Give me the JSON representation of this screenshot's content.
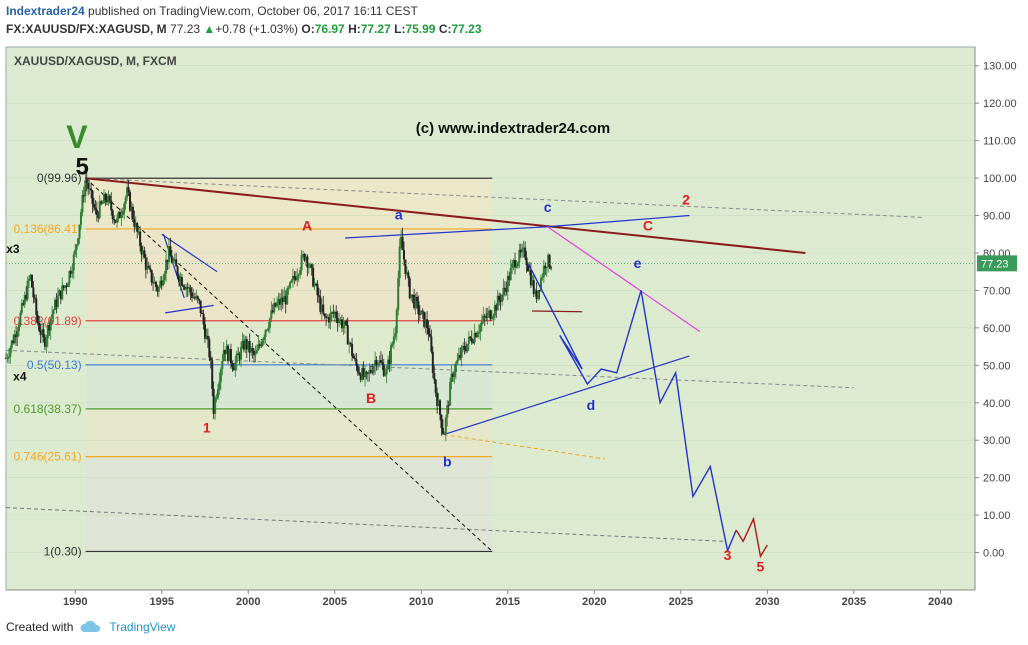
{
  "header": {
    "publisher": "Indextrader24",
    "published_text": "published on TradingView.com, October 06, 2017 16:11 CEST",
    "symbol": "FX:XAUUSD/FX:XAGUSD, M",
    "last": "77.23",
    "change": "+0.78 (+1.03%)",
    "open_label": "O:",
    "open": "76.97",
    "high_label": "H:",
    "high": "77.27",
    "low_label": "L:",
    "low": "75.99",
    "close_label": "C:",
    "close": "77.23"
  },
  "footer": {
    "created_with": "Created with",
    "brand": "TradingView"
  },
  "colors": {
    "up": "#2e7d32",
    "down": "#222222",
    "wave_blue": "#2233cc",
    "wave_red": "#e02020",
    "trend": "#8b1a1a",
    "magenta": "#e040e0",
    "bg": "#dcebd0"
  },
  "chart_data": {
    "type": "candlestick",
    "title": "XAUUSD/XAGUSD, M, FXCM",
    "watermark": "(c) www.indextrader24.com",
    "x_ticks": [
      "1990",
      "1995",
      "2000",
      "2005",
      "2010",
      "2015",
      "2020",
      "2025",
      "2030",
      "2035",
      "2040"
    ],
    "y_ticks": [
      "130.00",
      "120.00",
      "110.00",
      "100.00",
      "90.00",
      "80.00",
      "70.00",
      "60.00",
      "50.00",
      "40.00",
      "30.00",
      "20.00",
      "10.00",
      "0.00"
    ],
    "ylim": [
      -10,
      135
    ],
    "xlim": [
      1986.0,
      2042.0
    ],
    "last_price": "77.23",
    "price_path": [
      [
        1986.0,
        52
      ],
      [
        1986.5,
        58
      ],
      [
        1987.0,
        66
      ],
      [
        1987.4,
        74
      ],
      [
        1987.8,
        62
      ],
      [
        1988.2,
        56
      ],
      [
        1988.6,
        63
      ],
      [
        1989.0,
        68
      ],
      [
        1989.5,
        72
      ],
      [
        1990.0,
        80
      ],
      [
        1990.6,
        99.96
      ],
      [
        1991.2,
        90
      ],
      [
        1991.8,
        95
      ],
      [
        1992.4,
        88
      ],
      [
        1993.0,
        96
      ],
      [
        1993.6,
        85
      ],
      [
        1994.2,
        75
      ],
      [
        1994.8,
        70
      ],
      [
        1995.4,
        80
      ],
      [
        1996.0,
        74
      ],
      [
        1996.6,
        70
      ],
      [
        1997.2,
        66
      ],
      [
        1997.8,
        52
      ],
      [
        1998.0,
        38.37
      ],
      [
        1998.6,
        55
      ],
      [
        1999.2,
        50
      ],
      [
        1999.8,
        56
      ],
      [
        2000.4,
        52
      ],
      [
        2001.0,
        60
      ],
      [
        2001.6,
        66
      ],
      [
        2002.2,
        68
      ],
      [
        2002.8,
        75
      ],
      [
        2003.3,
        80
      ],
      [
        2003.8,
        72
      ],
      [
        2004.4,
        62
      ],
      [
        2005.0,
        64
      ],
      [
        2005.6,
        60
      ],
      [
        2006.2,
        50
      ],
      [
        2006.8,
        46
      ],
      [
        2007.4,
        52
      ],
      [
        2008.0,
        48
      ],
      [
        2008.5,
        60
      ],
      [
        2008.8,
        84
      ],
      [
        2009.3,
        70
      ],
      [
        2009.9,
        64
      ],
      [
        2010.4,
        60
      ],
      [
        2010.8,
        44
      ],
      [
        2011.3,
        31.5
      ],
      [
        2011.8,
        48
      ],
      [
        2012.4,
        54
      ],
      [
        2013.0,
        58
      ],
      [
        2013.6,
        62
      ],
      [
        2014.2,
        65
      ],
      [
        2014.8,
        70
      ],
      [
        2015.4,
        78
      ],
      [
        2016.0,
        80
      ],
      [
        2016.6,
        68
      ],
      [
        2017.2,
        78
      ],
      [
        2017.5,
        77.23
      ]
    ],
    "fib_levels": [
      {
        "label": "0(99.96)",
        "value": 99.96,
        "color": "#333333"
      },
      {
        "label": "0.136(86.41)",
        "value": 86.41,
        "color": "#f5a623"
      },
      {
        "label": "0.382(61.89)",
        "value": 61.89,
        "color": "#e0443c"
      },
      {
        "label": "0.5(50.13)",
        "value": 50.13,
        "color": "#3a7bd5"
      },
      {
        "label": "0.618(38.37)",
        "value": 38.37,
        "color": "#4e9a2e"
      },
      {
        "label": "0.746(25.61)",
        "value": 25.61,
        "color": "#f5a623"
      },
      {
        "label": "1(0.30)",
        "value": 0.3,
        "color": "#333333"
      }
    ],
    "fib_x_range": [
      1990.6,
      2014.1
    ],
    "projection_blue": [
      [
        2016.2,
        77
      ],
      [
        2019.3,
        49
      ],
      [
        2018.0,
        58
      ],
      [
        2019.6,
        45
      ],
      [
        2020.4,
        49
      ],
      [
        2021.3,
        48
      ],
      [
        2022.7,
        70
      ],
      [
        2023.8,
        40
      ],
      [
        2024.7,
        48
      ],
      [
        2025.7,
        15
      ],
      [
        2026.7,
        23
      ],
      [
        2027.7,
        0.5
      ],
      [
        2028.2,
        6
      ]
    ],
    "projection_red": [
      [
        2028.2,
        6
      ],
      [
        2028.6,
        3
      ],
      [
        2029.2,
        9
      ],
      [
        2029.6,
        -1
      ],
      [
        2030.0,
        2
      ]
    ],
    "wave_labels": [
      {
        "text": "V",
        "x": 1990.1,
        "y": 108,
        "color": "#3a8a2e",
        "size": 32
      },
      {
        "text": "5",
        "x": 1990.4,
        "y": 101,
        "color": "#111111",
        "size": 24
      },
      {
        "text": "x3",
        "x": 1986.4,
        "y": 80,
        "color": "#111111",
        "size": 12
      },
      {
        "text": "x4",
        "x": 1986.8,
        "y": 46,
        "color": "#111111",
        "size": 12
      },
      {
        "text": "1",
        "x": 1997.6,
        "y": 32,
        "color": "#e02020",
        "size": 14
      },
      {
        "text": "A",
        "x": 2003.4,
        "y": 86,
        "color": "#e02020",
        "size": 14
      },
      {
        "text": "B",
        "x": 2007.1,
        "y": 40,
        "color": "#e02020",
        "size": 14
      },
      {
        "text": "a",
        "x": 2008.7,
        "y": 89,
        "color": "#2233cc",
        "size": 14
      },
      {
        "text": "b",
        "x": 2011.5,
        "y": 23,
        "color": "#2233cc",
        "size": 14
      },
      {
        "text": "c",
        "x": 2017.3,
        "y": 91,
        "color": "#2233cc",
        "size": 14
      },
      {
        "text": "d",
        "x": 2019.8,
        "y": 38,
        "color": "#2233cc",
        "size": 14
      },
      {
        "text": "e",
        "x": 2022.5,
        "y": 76,
        "color": "#2233cc",
        "size": 14
      },
      {
        "text": "2",
        "x": 2025.3,
        "y": 93,
        "color": "#e02020",
        "size": 14
      },
      {
        "text": "C",
        "x": 2023.1,
        "y": 86,
        "color": "#e02020",
        "size": 14
      },
      {
        "text": "3",
        "x": 2027.7,
        "y": -2,
        "color": "#e02020",
        "size": 14
      },
      {
        "text": "5",
        "x": 2029.6,
        "y": -5,
        "color": "#e02020",
        "size": 14
      }
    ]
  }
}
